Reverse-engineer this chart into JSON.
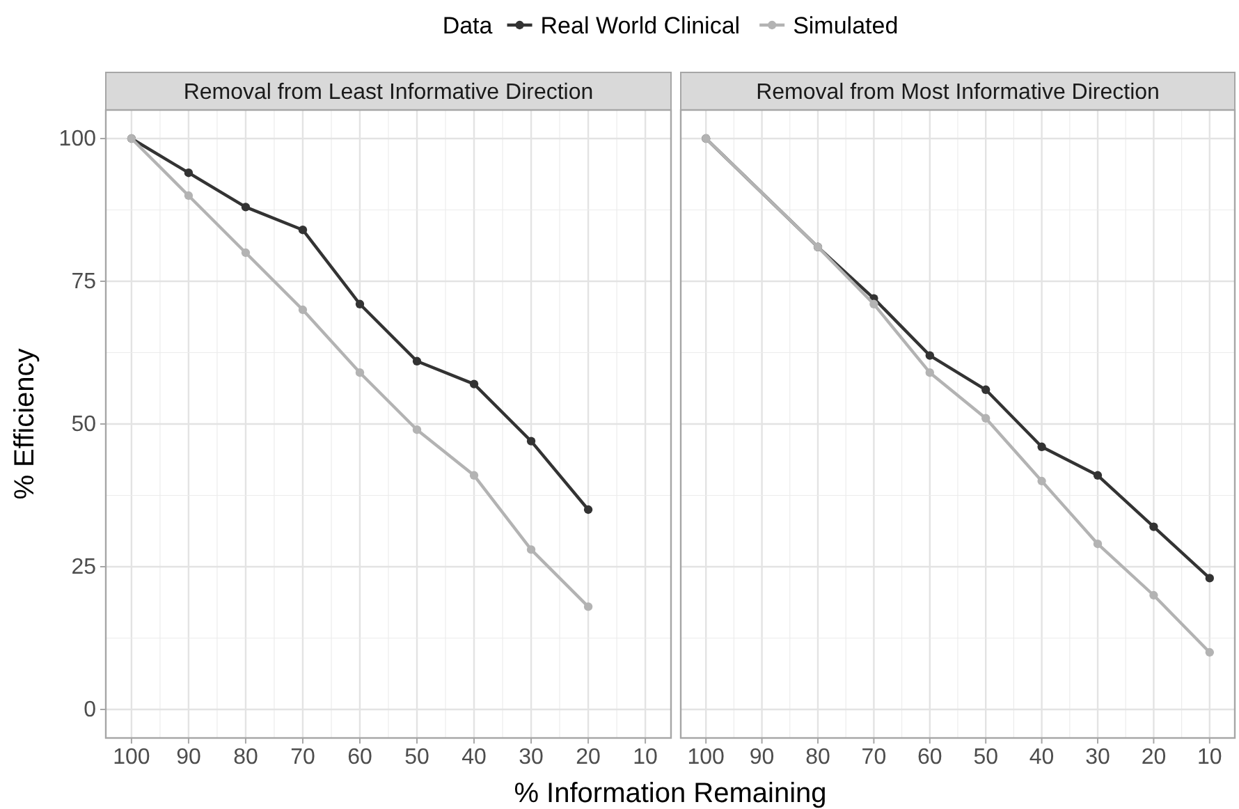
{
  "chart_data": [
    {
      "type": "line",
      "title": "Removal from Least Informative Direction",
      "xlabel": "% Information Remaining",
      "ylabel": "% Efficiency",
      "legend_title": "Data",
      "legend": "top",
      "grid": true,
      "marker": "circle",
      "line_style": "solid",
      "xlim": [
        104.5,
        5.5
      ],
      "xticks": [
        100,
        90,
        80,
        70,
        60,
        50,
        40,
        30,
        20,
        10
      ],
      "ylim": [
        -5,
        105
      ],
      "yticks": [
        0,
        25,
        50,
        75,
        100
      ],
      "series": [
        {
          "name": "Real World Clinical",
          "color": "#333333",
          "x": [
            100,
            90,
            80,
            70,
            60,
            50,
            40,
            30,
            20
          ],
          "values": [
            100,
            94,
            88,
            84,
            71,
            61,
            57,
            47,
            35
          ]
        },
        {
          "name": "Simulated",
          "color": "#b3b3b3",
          "x": [
            100,
            90,
            80,
            70,
            60,
            50,
            40,
            30,
            20
          ],
          "values": [
            100,
            90,
            80,
            70,
            59,
            49,
            41,
            28,
            18
          ]
        }
      ]
    },
    {
      "type": "line",
      "title": "Removal from Most Informative Direction",
      "grid": true,
      "marker": "circle",
      "line_style": "solid",
      "tick_labels": "x",
      "xlim": [
        104.5,
        5.5
      ],
      "xticks": [
        100,
        90,
        80,
        70,
        60,
        50,
        40,
        30,
        20,
        10
      ],
      "ylim": [
        -5,
        105
      ],
      "yticks": [
        0,
        25,
        50,
        75,
        100
      ],
      "series": [
        {
          "color": "#333333",
          "x": [
            100,
            80,
            70,
            60,
            50,
            40,
            30,
            20,
            10
          ],
          "values": [
            100,
            81,
            72,
            62,
            56,
            46,
            41,
            32,
            23
          ]
        },
        {
          "color": "#b3b3b3",
          "x": [
            100,
            80,
            70,
            60,
            50,
            40,
            30,
            20,
            10
          ],
          "values": [
            100,
            81,
            71,
            59,
            51,
            40,
            29,
            20,
            10
          ]
        }
      ]
    }
  ]
}
